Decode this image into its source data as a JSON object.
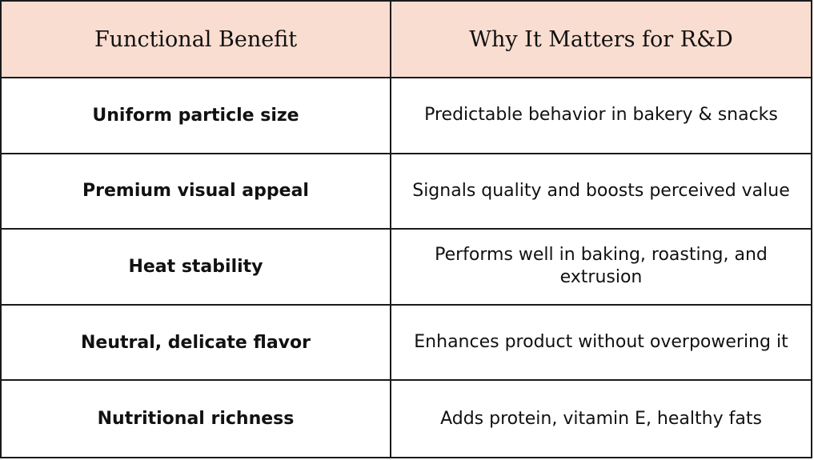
{
  "table": {
    "headers": [
      "Functional Benefit",
      "Why It Matters for R&D"
    ],
    "rows": [
      {
        "benefit": "Uniform particle size",
        "reason": "Predictable behavior in bakery & snacks"
      },
      {
        "benefit": "Premium visual appeal",
        "reason": "Signals quality and boosts perceived value"
      },
      {
        "benefit": "Heat stability",
        "reason": "Performs well in baking, roasting, and extrusion"
      },
      {
        "benefit": "Neutral, delicate flavor",
        "reason": "Enhances product without overpowering it"
      },
      {
        "benefit": "Nutritional richness",
        "reason": "Adds protein, vitamin E, healthy fats"
      }
    ],
    "colors": {
      "header_bg": "#f9ddd0",
      "border": "#1a1a1a",
      "text": "#111111"
    }
  }
}
